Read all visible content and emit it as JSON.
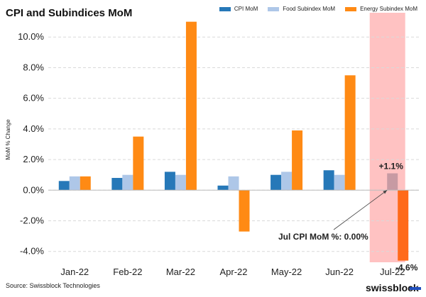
{
  "chart_data": {
    "type": "bar",
    "title": "CPI and Subindices MoM",
    "ylabel": "MoM % Change",
    "xlabel": "",
    "ylim": [
      -4.8,
      11.4
    ],
    "yticks": [
      -4,
      -2,
      0,
      2,
      4,
      6,
      8,
      10
    ],
    "ytick_labels": [
      "-4.0%",
      "-2.0%",
      "0.0%",
      "2.0%",
      "4.0%",
      "6.0%",
      "8.0%",
      "10.0%"
    ],
    "categories": [
      "Jan-22",
      "Feb-22",
      "Mar-22",
      "Apr-22",
      "May-22",
      "Jun-22",
      "Jul-22"
    ],
    "series": [
      {
        "name": "CPI MoM",
        "color": "#2678b8",
        "values": [
          0.6,
          0.8,
          1.2,
          0.3,
          1.0,
          1.3,
          0.0
        ]
      },
      {
        "name": "Food Subindex MoM",
        "color": "#aec7e8",
        "values": [
          0.9,
          1.0,
          1.0,
          0.9,
          1.2,
          1.0,
          1.1
        ]
      },
      {
        "name": "Energy Subindex MoM",
        "color": "#ff8a14",
        "values": [
          0.9,
          3.5,
          11.0,
          -2.7,
          3.9,
          7.5,
          -4.6
        ]
      }
    ],
    "highlight": {
      "category": "Jul-22",
      "color": "#ffb3b3",
      "food_label": "+1.1%",
      "energy_label": "-4.6%",
      "highlight_colors": [
        "#c79aa3",
        "#ff6a1a"
      ]
    },
    "annotation": {
      "text": "Jul CPI MoM %: 0.00%",
      "target_category": "Jul-22",
      "target_value": 0.0
    },
    "legend_position": "top-right",
    "grid": "horizontal-dashed"
  },
  "source": "Source: Swissblock Technologies",
  "brand": "swissblock"
}
